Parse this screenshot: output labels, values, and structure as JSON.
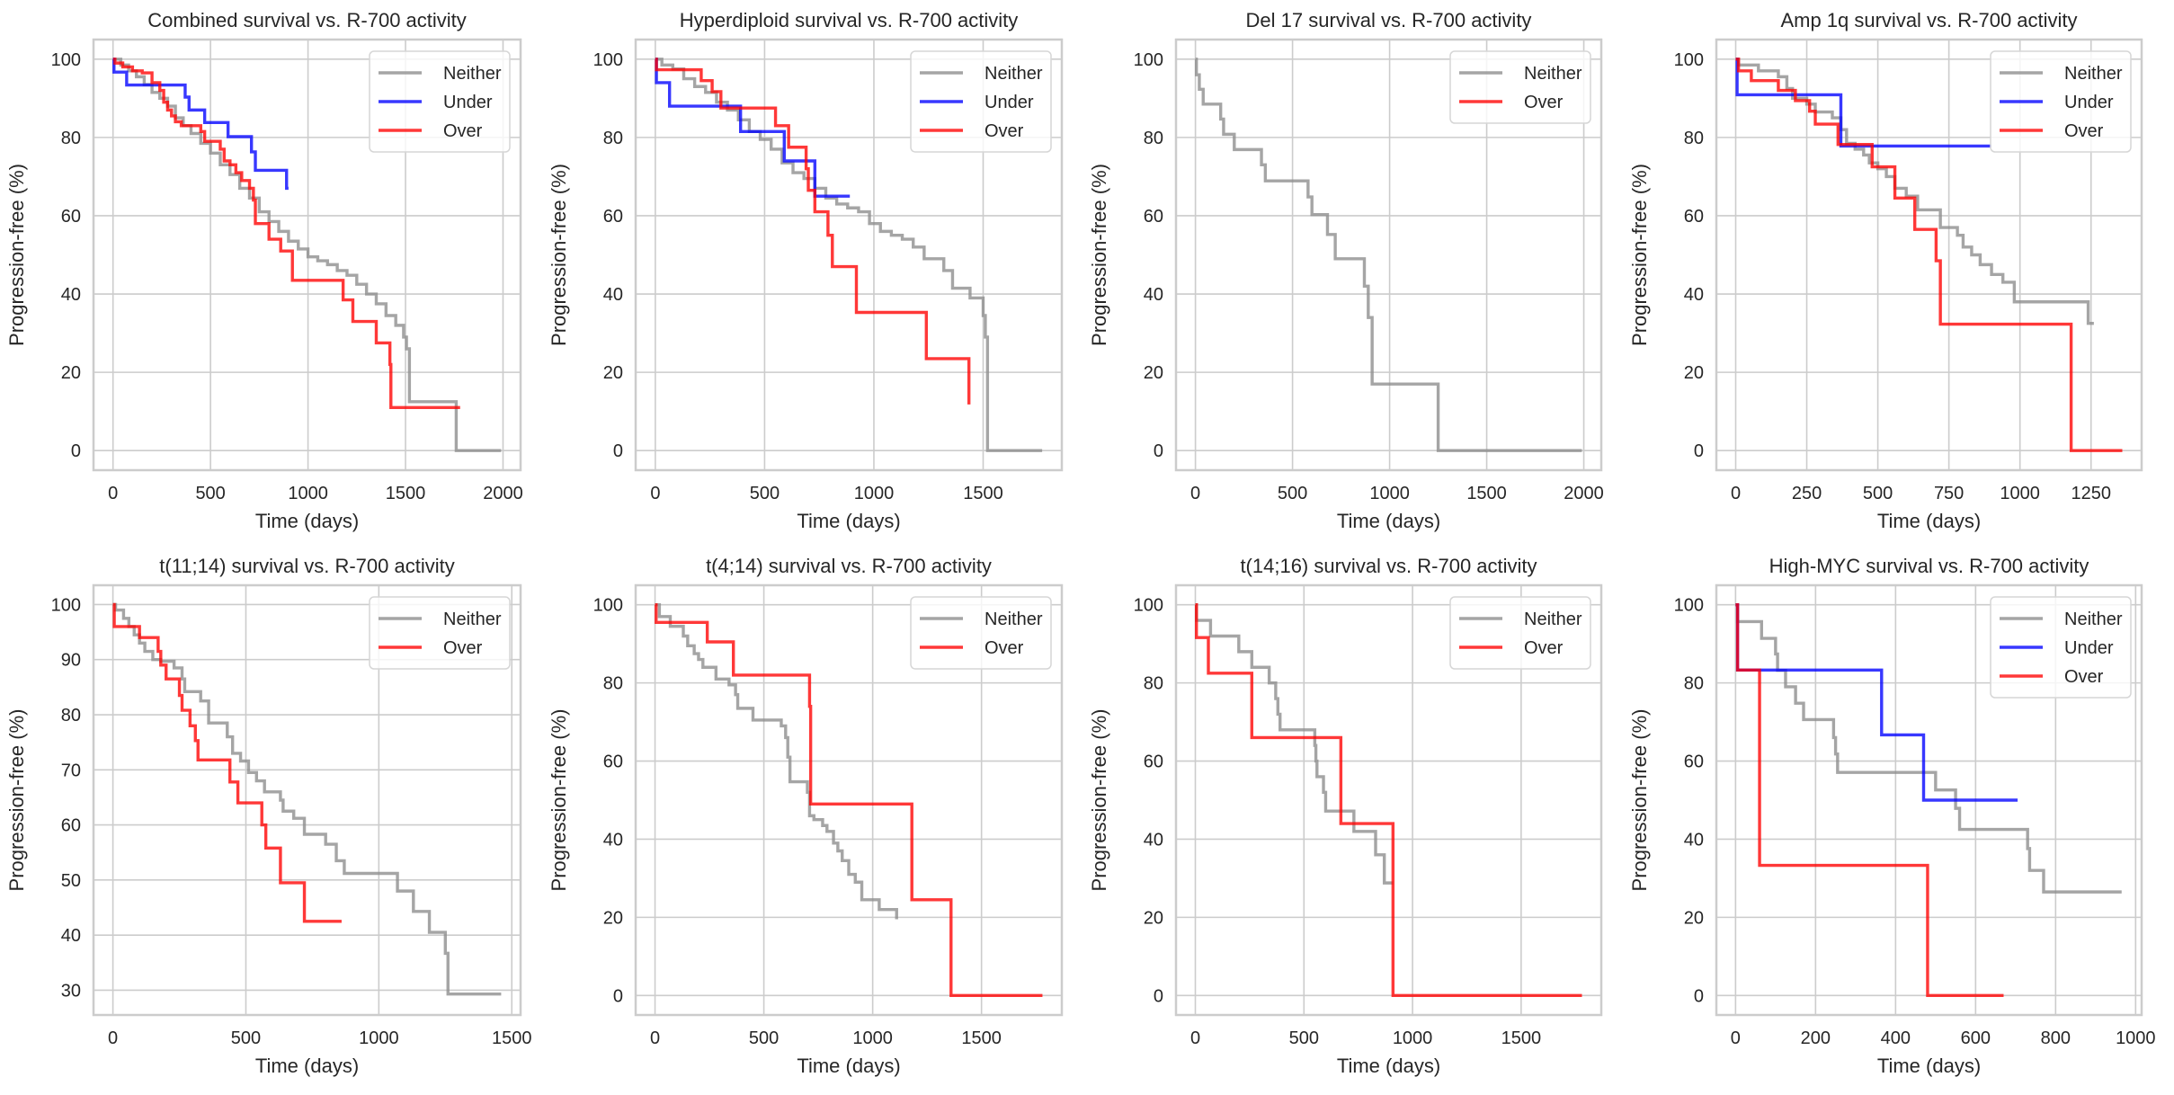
{
  "chart_data": [
    {
      "type": "line",
      "title": "Combined survival vs. R-700 activity",
      "xlabel": "Time (days)",
      "ylabel": "Progression-free (%)",
      "xlim": [
        -100,
        2090
      ],
      "ylim": [
        -5,
        105
      ],
      "xticks": [
        0,
        500,
        1000,
        1500,
        2000
      ],
      "yticks": [
        0,
        20,
        40,
        60,
        80,
        100
      ],
      "grid": true,
      "legend": "top-right",
      "series": [
        {
          "name": "Neither",
          "color": "#8c8c8c",
          "x": [
            0,
            40,
            80,
            120,
            160,
            200,
            240,
            280,
            320,
            360,
            400,
            450,
            500,
            550,
            600,
            650,
            700,
            750,
            800,
            850,
            900,
            950,
            1000,
            1050,
            1100,
            1150,
            1200,
            1250,
            1300,
            1350,
            1400,
            1450,
            1490,
            1505,
            1520,
            1760,
            1990
          ],
          "y": [
            100,
            98.5,
            97,
            95.5,
            93.5,
            91.5,
            90,
            88,
            85,
            83,
            81,
            78.5,
            76,
            73,
            70.5,
            67,
            64.5,
            61,
            58.5,
            56,
            53.5,
            51.5,
            49.5,
            48.5,
            47.5,
            46,
            44.8,
            42.5,
            40,
            37.5,
            34.5,
            32,
            29,
            26,
            12.5,
            0,
            0
          ]
        },
        {
          "name": "Under",
          "color": "#0000ff",
          "x": [
            0,
            5,
            70,
            370,
            390,
            470,
            590,
            710,
            730,
            890,
            900
          ],
          "y": [
            100,
            96.7,
            93.4,
            90.3,
            87,
            83.8,
            80.2,
            76.3,
            71.6,
            67,
            67
          ]
        },
        {
          "name": "Over",
          "color": "#ff0000",
          "x": [
            0,
            10,
            50,
            100,
            150,
            200,
            240,
            260,
            280,
            300,
            320,
            350,
            450,
            470,
            500,
            550,
            570,
            600,
            630,
            660,
            700,
            720,
            730,
            800,
            860,
            920,
            1180,
            1230,
            1350,
            1420,
            1425,
            1780
          ],
          "y": [
            100,
            99,
            98,
            97,
            96.5,
            94,
            92,
            89,
            87,
            85.5,
            84,
            83,
            81.5,
            79,
            79,
            77,
            74,
            73,
            71,
            69,
            67,
            64,
            58,
            54,
            51,
            43.5,
            38.5,
            33,
            27.5,
            22,
            11,
            11
          ]
        }
      ]
    },
    {
      "type": "line",
      "title": "Hyperdiploid survival vs. R-700 activity",
      "xlabel": "Time (days)",
      "ylabel": "Progression-free (%)",
      "xlim": [
        -90,
        1860
      ],
      "ylim": [
        -5,
        105
      ],
      "xticks": [
        0,
        500,
        1000,
        1500
      ],
      "yticks": [
        0,
        20,
        40,
        60,
        80,
        100
      ],
      "grid": true,
      "legend": "top-right",
      "series": [
        {
          "name": "Neither",
          "color": "#8c8c8c",
          "x": [
            0,
            30,
            80,
            130,
            180,
            230,
            280,
            330,
            380,
            430,
            480,
            530,
            580,
            630,
            680,
            730,
            780,
            830,
            880,
            930,
            980,
            1030,
            1080,
            1130,
            1180,
            1230,
            1280,
            1320,
            1360,
            1400,
            1440,
            1500,
            1510,
            1520,
            1770
          ],
          "y": [
            100,
            98.5,
            97.5,
            95,
            93,
            91.5,
            89,
            87,
            84.5,
            81.5,
            79.5,
            77,
            73.5,
            71,
            69.5,
            67,
            64.5,
            63,
            62,
            61,
            58,
            56,
            55,
            54,
            52,
            49,
            49,
            46,
            41.5,
            41.5,
            39,
            34.5,
            29,
            0,
            0
          ]
        },
        {
          "name": "Under",
          "color": "#0000ff",
          "x": [
            0,
            5,
            65,
            390,
            590,
            730,
            890
          ],
          "y": [
            100,
            94,
            88,
            81.5,
            74,
            65,
            65
          ]
        },
        {
          "name": "Over",
          "color": "#ff0000",
          "x": [
            0,
            5,
            210,
            260,
            300,
            550,
            610,
            690,
            700,
            730,
            790,
            810,
            920,
            1240,
            1430,
            1435
          ],
          "y": [
            100,
            97.3,
            94.5,
            91.7,
            87.5,
            83,
            77.5,
            72,
            66.5,
            61,
            55,
            47,
            35.3,
            23.5,
            23.5,
            11.8
          ]
        }
      ]
    },
    {
      "type": "line",
      "title": "Del 17 survival vs. R-700 activity",
      "xlabel": "Time (days)",
      "ylabel": "Progression-free (%)",
      "xlim": [
        -100,
        2090
      ],
      "ylim": [
        -5,
        105
      ],
      "xticks": [
        0,
        500,
        1000,
        1500,
        2000
      ],
      "yticks": [
        0,
        20,
        40,
        60,
        80,
        100
      ],
      "grid": true,
      "legend": "top-right",
      "series": [
        {
          "name": "Neither",
          "color": "#8c8c8c",
          "x": [
            0,
            5,
            20,
            40,
            130,
            145,
            200,
            340,
            360,
            580,
            600,
            680,
            720,
            870,
            890,
            910,
            1250,
            1990
          ],
          "y": [
            100,
            96,
            92.3,
            88.5,
            84.7,
            80.8,
            76.9,
            73,
            68.9,
            64.8,
            60.3,
            55.2,
            49,
            42,
            34,
            17,
            0,
            0
          ]
        },
        {
          "name": "Over",
          "color": "#ff0000",
          "x": [],
          "y": []
        }
      ]
    },
    {
      "type": "line",
      "title": "Amp 1q survival vs. R-700 activity",
      "xlabel": "Time (days)",
      "ylabel": "Progression-free (%)",
      "xlim": [
        -68,
        1428
      ],
      "ylim": [
        -5,
        105
      ],
      "xticks": [
        0,
        250,
        500,
        750,
        1000,
        1250
      ],
      "yticks": [
        0,
        20,
        40,
        60,
        80,
        100
      ],
      "grid": true,
      "legend": "top-right",
      "series": [
        {
          "name": "Neither",
          "color": "#8c8c8c",
          "x": [
            0,
            10,
            80,
            150,
            180,
            200,
            250,
            280,
            340,
            370,
            390,
            420,
            450,
            470,
            500,
            530,
            560,
            600,
            640,
            720,
            780,
            800,
            830,
            860,
            900,
            940,
            980,
            1240,
            1260
          ],
          "y": [
            100,
            98.5,
            97,
            95.5,
            92.5,
            90,
            88.5,
            86.5,
            85,
            82,
            78.5,
            77,
            75.5,
            73.5,
            72,
            70,
            67,
            65,
            61.5,
            57,
            55,
            52,
            50,
            47.5,
            45,
            43,
            38,
            32.5,
            32.5
          ]
        },
        {
          "name": "Under",
          "color": "#0000ff",
          "x": [
            0,
            5,
            370,
            900
          ],
          "y": [
            100,
            90.9,
            77.8,
            77.8
          ]
        },
        {
          "name": "Over",
          "color": "#ff0000",
          "x": [
            0,
            10,
            55,
            150,
            210,
            260,
            280,
            360,
            480,
            560,
            630,
            705,
            720,
            1180,
            1360
          ],
          "y": [
            100,
            97,
            94.5,
            92,
            89.4,
            86.7,
            83.4,
            78.2,
            72.5,
            64.5,
            56.5,
            48.5,
            32.3,
            0,
            0
          ]
        }
      ]
    },
    {
      "type": "line",
      "title": "t(11;14) survival vs. R-700 activity",
      "xlabel": "Time (days)",
      "ylabel": "Progression-free (%)",
      "xlim": [
        -73,
        1533
      ],
      "ylim": [
        25.5,
        103.5
      ],
      "xticks": [
        0,
        500,
        1000,
        1500
      ],
      "yticks": [
        30,
        40,
        50,
        60,
        70,
        80,
        90,
        100
      ],
      "grid": true,
      "legend": "top-right",
      "series": [
        {
          "name": "Neither",
          "color": "#8c8c8c",
          "x": [
            0,
            10,
            40,
            60,
            80,
            100,
            120,
            150,
            180,
            230,
            260,
            270,
            300,
            330,
            360,
            430,
            450,
            480,
            510,
            540,
            570,
            630,
            640,
            680,
            720,
            800,
            840,
            870,
            1070,
            1130,
            1190,
            1250,
            1260,
            1460
          ],
          "y": [
            100,
            99,
            97.5,
            96,
            94.5,
            93,
            91.5,
            90,
            89.7,
            88.5,
            86.5,
            84.2,
            84.2,
            82.5,
            78.5,
            76,
            73,
            71.6,
            69.5,
            68,
            66,
            64.5,
            62.5,
            61.2,
            58.3,
            56.5,
            53.5,
            51.2,
            48,
            44.3,
            40.5,
            36.7,
            29.3,
            29.3
          ]
        },
        {
          "name": "Over",
          "color": "#ff0000",
          "x": [
            0,
            5,
            100,
            170,
            180,
            200,
            250,
            260,
            270,
            290,
            310,
            320,
            330,
            440,
            470,
            560,
            575,
            630,
            720,
            860
          ],
          "y": [
            100,
            96,
            94,
            91.5,
            89,
            86.5,
            83.5,
            80.8,
            80.8,
            78,
            75.3,
            71.8,
            71.8,
            67.8,
            64,
            60,
            55.8,
            49.5,
            42.5,
            42.5
          ]
        }
      ]
    },
    {
      "type": "line",
      "title": "t(4;14) survival vs. R-700 activity",
      "xlabel": "Time (days)",
      "ylabel": "Progression-free (%)",
      "xlim": [
        -89,
        1869
      ],
      "ylim": [
        -5,
        105
      ],
      "xticks": [
        0,
        500,
        1000,
        1500
      ],
      "yticks": [
        0,
        20,
        40,
        60,
        80,
        100
      ],
      "grid": true,
      "legend": "top-right",
      "series": [
        {
          "name": "Neither",
          "color": "#8c8c8c",
          "x": [
            0,
            20,
            70,
            130,
            150,
            180,
            200,
            220,
            280,
            340,
            370,
            380,
            400,
            450,
            580,
            600,
            610,
            620,
            700,
            710,
            730,
            770,
            790,
            820,
            840,
            860,
            890,
            920,
            950,
            1030,
            1100,
            1110
          ],
          "y": [
            100,
            97,
            94.5,
            92,
            89.5,
            87.5,
            86,
            84,
            81,
            79.5,
            77,
            73.5,
            73.5,
            70.5,
            69,
            66,
            61,
            54.7,
            52,
            46,
            45,
            43.5,
            42,
            39,
            37,
            34.5,
            31,
            29,
            24.5,
            22,
            22,
            19.5
          ]
        },
        {
          "name": "Over",
          "color": "#ff0000",
          "x": [
            0,
            5,
            240,
            360,
            710,
            715,
            1180,
            1360,
            1780
          ],
          "y": [
            100,
            95.5,
            90.5,
            82,
            74,
            49,
            24.5,
            0,
            0
          ]
        }
      ]
    },
    {
      "type": "line",
      "title": "t(14;16) survival vs. R-700 activity",
      "xlabel": "Time (days)",
      "ylabel": "Progression-free (%)",
      "xlim": [
        -89,
        1869
      ],
      "ylim": [
        -5,
        105
      ],
      "xticks": [
        0,
        500,
        1000,
        1500
      ],
      "yticks": [
        0,
        20,
        40,
        60,
        80,
        100
      ],
      "grid": true,
      "legend": "top-right",
      "series": [
        {
          "name": "Neither",
          "color": "#8c8c8c",
          "x": [
            0,
            5,
            70,
            200,
            260,
            340,
            370,
            380,
            390,
            400,
            550,
            555,
            560,
            590,
            600,
            720,
            730,
            830,
            870,
            910
          ],
          "y": [
            100,
            96,
            92,
            88,
            84,
            80,
            76,
            72,
            68,
            68,
            64,
            60,
            56,
            52,
            47.2,
            47.2,
            42,
            36,
            28.8,
            28.8
          ]
        },
        {
          "name": "Over",
          "color": "#ff0000",
          "x": [
            0,
            5,
            60,
            260,
            670,
            910,
            1780
          ],
          "y": [
            100,
            91.6,
            82.5,
            66,
            44,
            0,
            0
          ]
        }
      ]
    },
    {
      "type": "line",
      "title": "High-MYC survival vs. R-700 activity",
      "xlabel": "Time (days)",
      "ylabel": "Progression-free (%)",
      "xlim": [
        -48,
        1015
      ],
      "ylim": [
        -5,
        105
      ],
      "xticks": [
        0,
        200,
        400,
        600,
        800,
        1000
      ],
      "yticks": [
        0,
        20,
        40,
        60,
        80,
        100
      ],
      "grid": true,
      "legend": "top-right",
      "series": [
        {
          "name": "Neither",
          "color": "#8c8c8c",
          "x": [
            0,
            5,
            65,
            100,
            105,
            125,
            150,
            170,
            245,
            250,
            255,
            260,
            500,
            550,
            560,
            730,
            735,
            770,
            965
          ],
          "y": [
            100,
            95.7,
            91.4,
            87.4,
            83.2,
            79,
            74.8,
            70.6,
            66,
            61.8,
            57.1,
            57.1,
            52.6,
            47.9,
            42.5,
            37.6,
            32,
            26.5,
            26.5
          ]
        },
        {
          "name": "Under",
          "color": "#0000ff",
          "x": [
            0,
            5,
            365,
            470,
            705
          ],
          "y": [
            100,
            83.3,
            66.7,
            50,
            50
          ]
        },
        {
          "name": "Over",
          "color": "#ff0000",
          "x": [
            0,
            5,
            60,
            480,
            670
          ],
          "y": [
            100,
            83.3,
            33.3,
            0,
            0
          ]
        }
      ]
    }
  ]
}
